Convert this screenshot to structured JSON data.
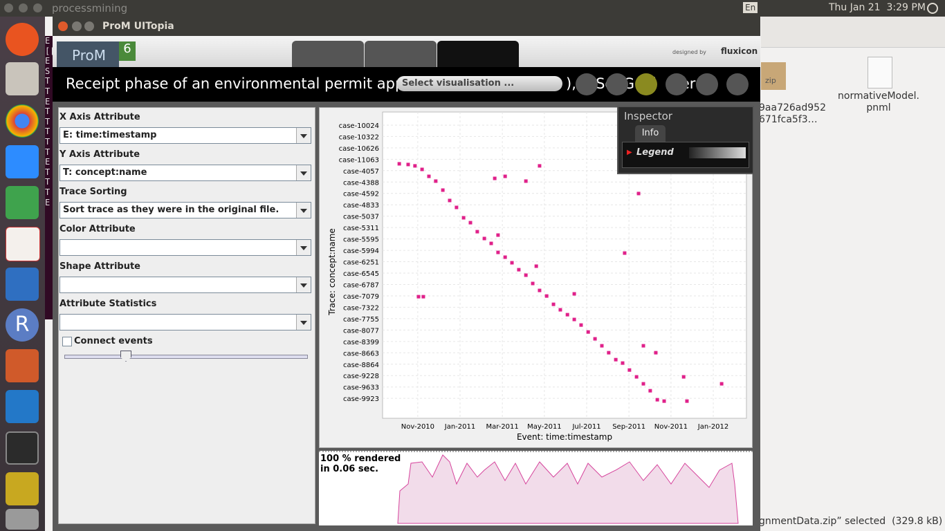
{
  "topbar": {
    "app": "processmining",
    "lang": "En",
    "clock": "Thu Jan 21  3:29 PM"
  },
  "terminal_strip": "E[[SESTTETTTTTETTTE",
  "launcher": {
    "r_icon": "R"
  },
  "desktop": {
    "files": [
      {
        "label": "9aa726ad952\n671fca5f3…"
      },
      {
        "label": "normativeModel.\npnml"
      }
    ],
    "zip_badge": "zip",
    "status": "gnmentData.zip” selected  (329.8 kB)"
  },
  "window": {
    "title": "ProM UITopia",
    "logo": "ProM",
    "logo_version": "6",
    "designed_by": "designed by",
    "brand": "fluxicon"
  },
  "header": {
    "title": "Receipt phase of an environmental permit appli",
    "title_tail": "), (  Se  G  oj  (  er  o",
    "select": "Select visualisation ..."
  },
  "settings": {
    "fields": [
      {
        "label": "X Axis Attribute",
        "value": "E: time:timestamp"
      },
      {
        "label": "Y Axis Attribute",
        "value": "T: concept:name"
      },
      {
        "label": "Trace Sorting",
        "value": "Sort trace as they were in the original file."
      },
      {
        "label": "Color Attribute"
      },
      {
        "label": "Shape Attribute"
      },
      {
        "label": "Attribute Statistics"
      }
    ],
    "checkbox": "Connect events"
  },
  "inspector": {
    "title": "Inspector",
    "tab": "Info",
    "section": "Legend"
  },
  "render": {
    "line1": "100 % rendered",
    "line2": "in 0.06 sec."
  },
  "chart_data": {
    "type": "scatter",
    "xlabel": "Event: time:timestamp",
    "ylabel": "Trace: concept:name",
    "color": "#e0218a",
    "grid": true,
    "xlim": [
      2010.694,
      2012.131
    ],
    "ylim": [
      25.75,
      -1.15
    ],
    "xticks": [
      {
        "value": 2010.833,
        "label": "Nov-2010"
      },
      {
        "value": 2011.0,
        "label": "Jan-2011"
      },
      {
        "value": 2011.167,
        "label": "Mar-2011"
      },
      {
        "value": 2011.333,
        "label": "May-2011"
      },
      {
        "value": 2011.5,
        "label": "Jul-2011"
      },
      {
        "value": 2011.667,
        "label": "Sep-2011"
      },
      {
        "value": 2011.833,
        "label": "Nov-2011"
      },
      {
        "value": 2012.0,
        "label": "Jan-2012"
      }
    ],
    "yticks": [
      {
        "value": 0,
        "label": "case-10024"
      },
      {
        "value": 1,
        "label": "case-10322"
      },
      {
        "value": 2,
        "label": "case-10626"
      },
      {
        "value": 3,
        "label": "case-11063"
      },
      {
        "value": 4,
        "label": "case-4057"
      },
      {
        "value": 5,
        "label": "case-4388"
      },
      {
        "value": 6,
        "label": "case-4592"
      },
      {
        "value": 7,
        "label": "case-4833"
      },
      {
        "value": 8,
        "label": "case-5037"
      },
      {
        "value": 9,
        "label": "case-5311"
      },
      {
        "value": 10,
        "label": "case-5595"
      },
      {
        "value": 11,
        "label": "case-5994"
      },
      {
        "value": 12,
        "label": "case-6251"
      },
      {
        "value": 13,
        "label": "case-6545"
      },
      {
        "value": 14,
        "label": "case-6787"
      },
      {
        "value": 15,
        "label": "case-7079"
      },
      {
        "value": 16,
        "label": "case-7322"
      },
      {
        "value": 17,
        "label": "case-7755"
      },
      {
        "value": 18,
        "label": "case-8077"
      },
      {
        "value": 19,
        "label": "case-8399"
      },
      {
        "value": 20,
        "label": "case-8663"
      },
      {
        "value": 21,
        "label": "case-8864"
      },
      {
        "value": 22,
        "label": "case-9228"
      },
      {
        "value": 23,
        "label": "case-9633"
      },
      {
        "value": 24,
        "label": "case-9923"
      }
    ],
    "x": [
      2010.76,
      2010.795,
      2010.822,
      2010.85,
      2010.877,
      2010.904,
      2010.932,
      2010.959,
      2010.986,
      2011.014,
      2011.041,
      2011.068,
      2011.096,
      2011.123,
      2011.15,
      2011.178,
      2011.205,
      2011.232,
      2011.26,
      2011.287,
      2011.314,
      2011.342,
      2011.369,
      2011.396,
      2011.424,
      2011.451,
      2011.478,
      2011.506,
      2011.533,
      2011.56,
      2011.587,
      2011.615,
      2011.642,
      2011.669,
      2011.697,
      2011.724,
      2011.751,
      2011.779,
      2011.806,
      2010.836,
      2010.855,
      2011.314,
      2011.26,
      2011.137,
      2011.178,
      2011.705,
      2011.65,
      2011.883,
      2012.033,
      2011.896,
      2011.773,
      2011.724,
      2011.15,
      2011.301,
      2011.451
    ],
    "values": [
      3.4,
      3.46,
      3.58,
      3.89,
      4.5,
      4.92,
      5.71,
      6.62,
      7.23,
      8.14,
      8.57,
      9.36,
      9.96,
      10.39,
      11.18,
      11.6,
      12.09,
      12.7,
      13.18,
      13.91,
      14.52,
      15.01,
      15.74,
      16.22,
      16.65,
      17.07,
      17.56,
      18.17,
      18.77,
      19.38,
      19.99,
      20.6,
      20.9,
      21.51,
      22.11,
      22.72,
      23.33,
      24.12,
      24.24,
      15.07,
      15.07,
      3.58,
      4.92,
      4.68,
      4.5,
      6.01,
      11.24,
      22.11,
      22.72,
      24.24,
      19.99,
      19.38,
      9.66,
      12.39,
      14.82
    ]
  }
}
